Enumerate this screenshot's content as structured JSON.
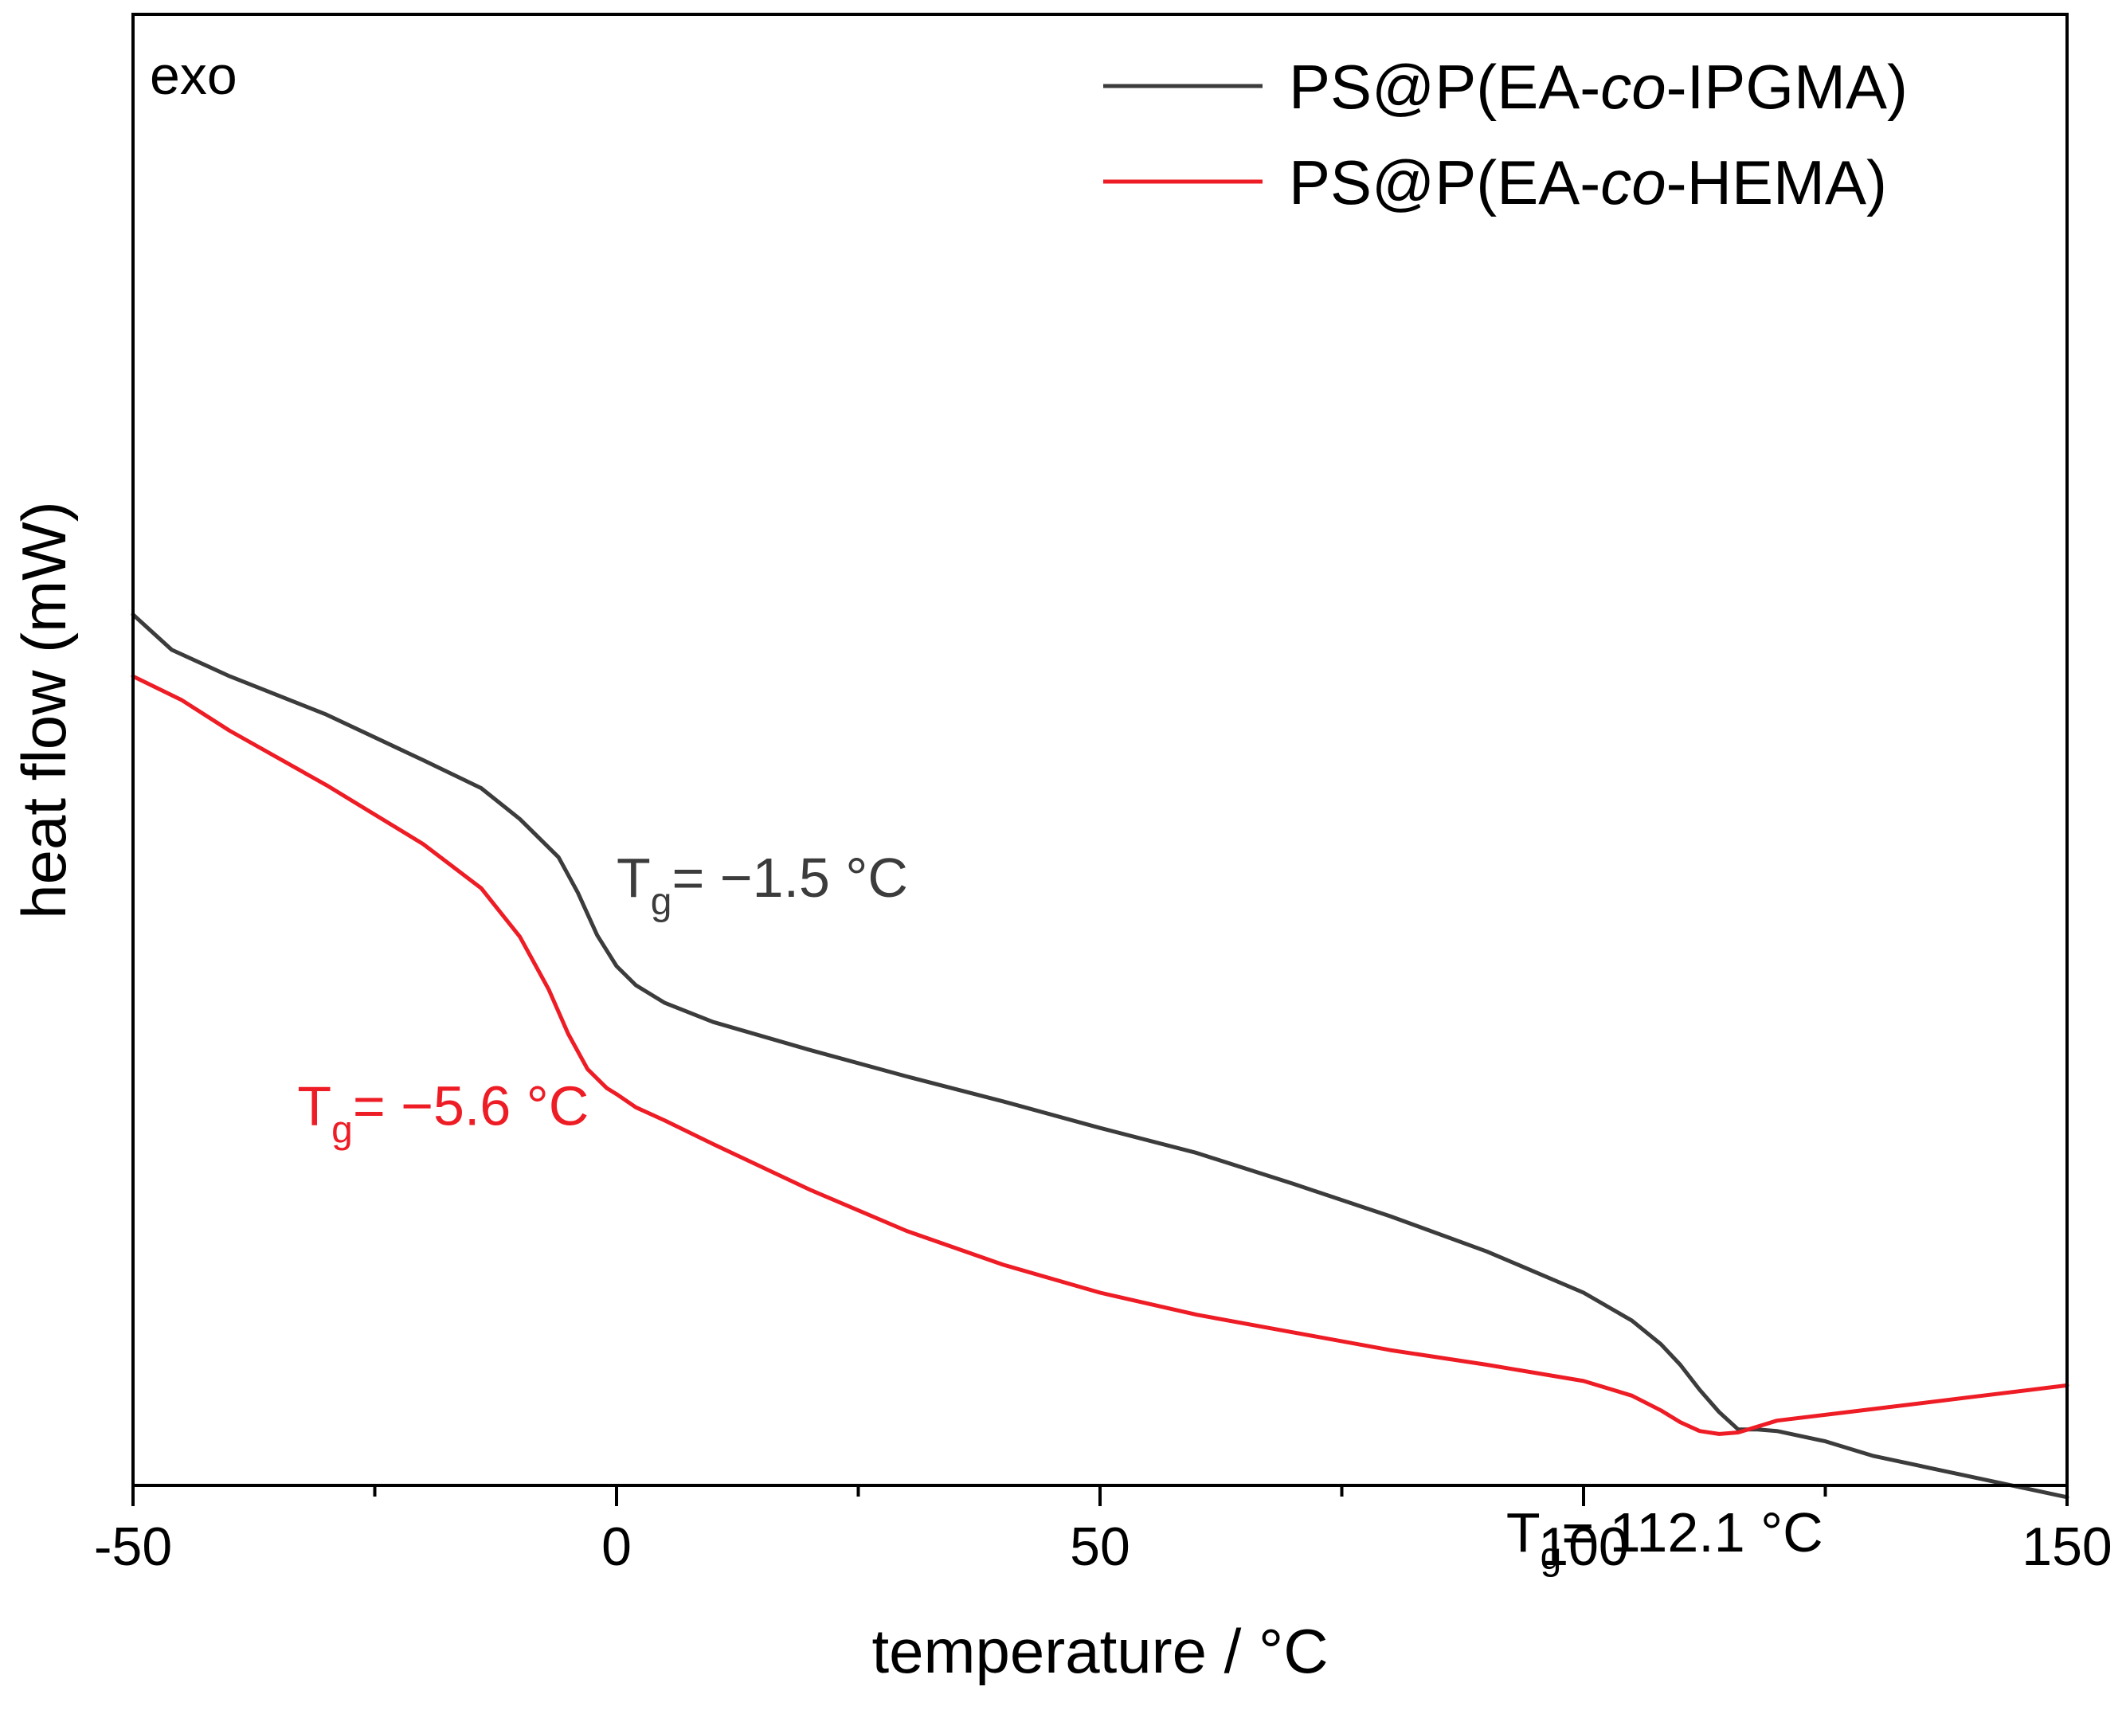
{
  "chart_data": {
    "type": "line",
    "title": "",
    "xlabel": "temperature / °C",
    "ylabel": "heat flow (mW)",
    "xlim": [
      -50,
      150
    ],
    "ylim": [
      0,
      100
    ],
    "xticks": [
      -50,
      0,
      50,
      100,
      150
    ],
    "x_tick_labels": [
      "-50",
      "0",
      "50",
      "100",
      "150"
    ],
    "x_minor_ticks": [
      -25,
      25,
      75,
      125
    ],
    "y_ticks_shown": false,
    "corner_label": "exo",
    "legend_position": "top-right",
    "series": [
      {
        "name": "PS@P(EA-co-IPGMA)",
        "legend_prefix": "PS@P(EA-",
        "legend_italic": "co",
        "legend_suffix": "-IPGMA)",
        "color": "#3c3c3c",
        "x": [
          -50,
          -46,
          -40,
          -30,
          -20,
          -14,
          -10,
          -6,
          -4,
          -2,
          0,
          2,
          5,
          10,
          20,
          30,
          40,
          50,
          60,
          70,
          80,
          90,
          100,
          105,
          108,
          110,
          112,
          114,
          116,
          118,
          120,
          125,
          130,
          140,
          150
        ],
        "y": [
          59.2,
          56.8,
          55.0,
          52.4,
          49.3,
          47.4,
          45.3,
          42.7,
          40.3,
          37.4,
          35.3,
          34.0,
          32.8,
          31.5,
          29.6,
          27.8,
          26.1,
          24.3,
          22.6,
          20.5,
          18.3,
          15.9,
          13.1,
          11.2,
          9.6,
          8.2,
          6.5,
          5.0,
          3.8,
          3.8,
          3.7,
          3.0,
          2.0,
          0.6,
          -0.8
        ]
      },
      {
        "name": "PS@P(EA-co-HEMA)",
        "legend_prefix": "PS@P(EA-",
        "legend_italic": "co",
        "legend_suffix": "-HEMA)",
        "color": "#ee1c25",
        "x": [
          -50,
          -45,
          -40,
          -30,
          -20,
          -14,
          -10,
          -7,
          -5,
          -3,
          -1,
          0,
          2,
          5,
          10,
          20,
          30,
          40,
          50,
          60,
          70,
          80,
          90,
          100,
          105,
          108,
          110,
          112,
          114,
          116,
          118,
          120,
          130,
          140,
          150
        ],
        "y": [
          55.0,
          53.4,
          51.3,
          47.6,
          43.6,
          40.6,
          37.3,
          33.7,
          30.7,
          28.3,
          27.0,
          26.6,
          25.7,
          24.8,
          23.2,
          20.1,
          17.3,
          15.0,
          13.1,
          11.6,
          10.4,
          9.2,
          8.2,
          7.1,
          6.1,
          5.1,
          4.3,
          3.7,
          3.5,
          3.6,
          4.0,
          4.4,
          5.2,
          6.0,
          6.8
        ]
      }
    ],
    "annotations": [
      {
        "base": "T",
        "sub": "g",
        "text": "= −1.5 °C",
        "color": "#3c3c3c",
        "x": 0,
        "y": 40
      },
      {
        "base": "T",
        "sub": "g",
        "text": "= −5.6 °C",
        "color": "#ee1c25",
        "x": -33,
        "y": 24.5
      },
      {
        "base": "T",
        "sub": "g",
        "text": "= 112.1 °C",
        "color": "#000000",
        "x": 92,
        "y": -4.5
      }
    ]
  }
}
